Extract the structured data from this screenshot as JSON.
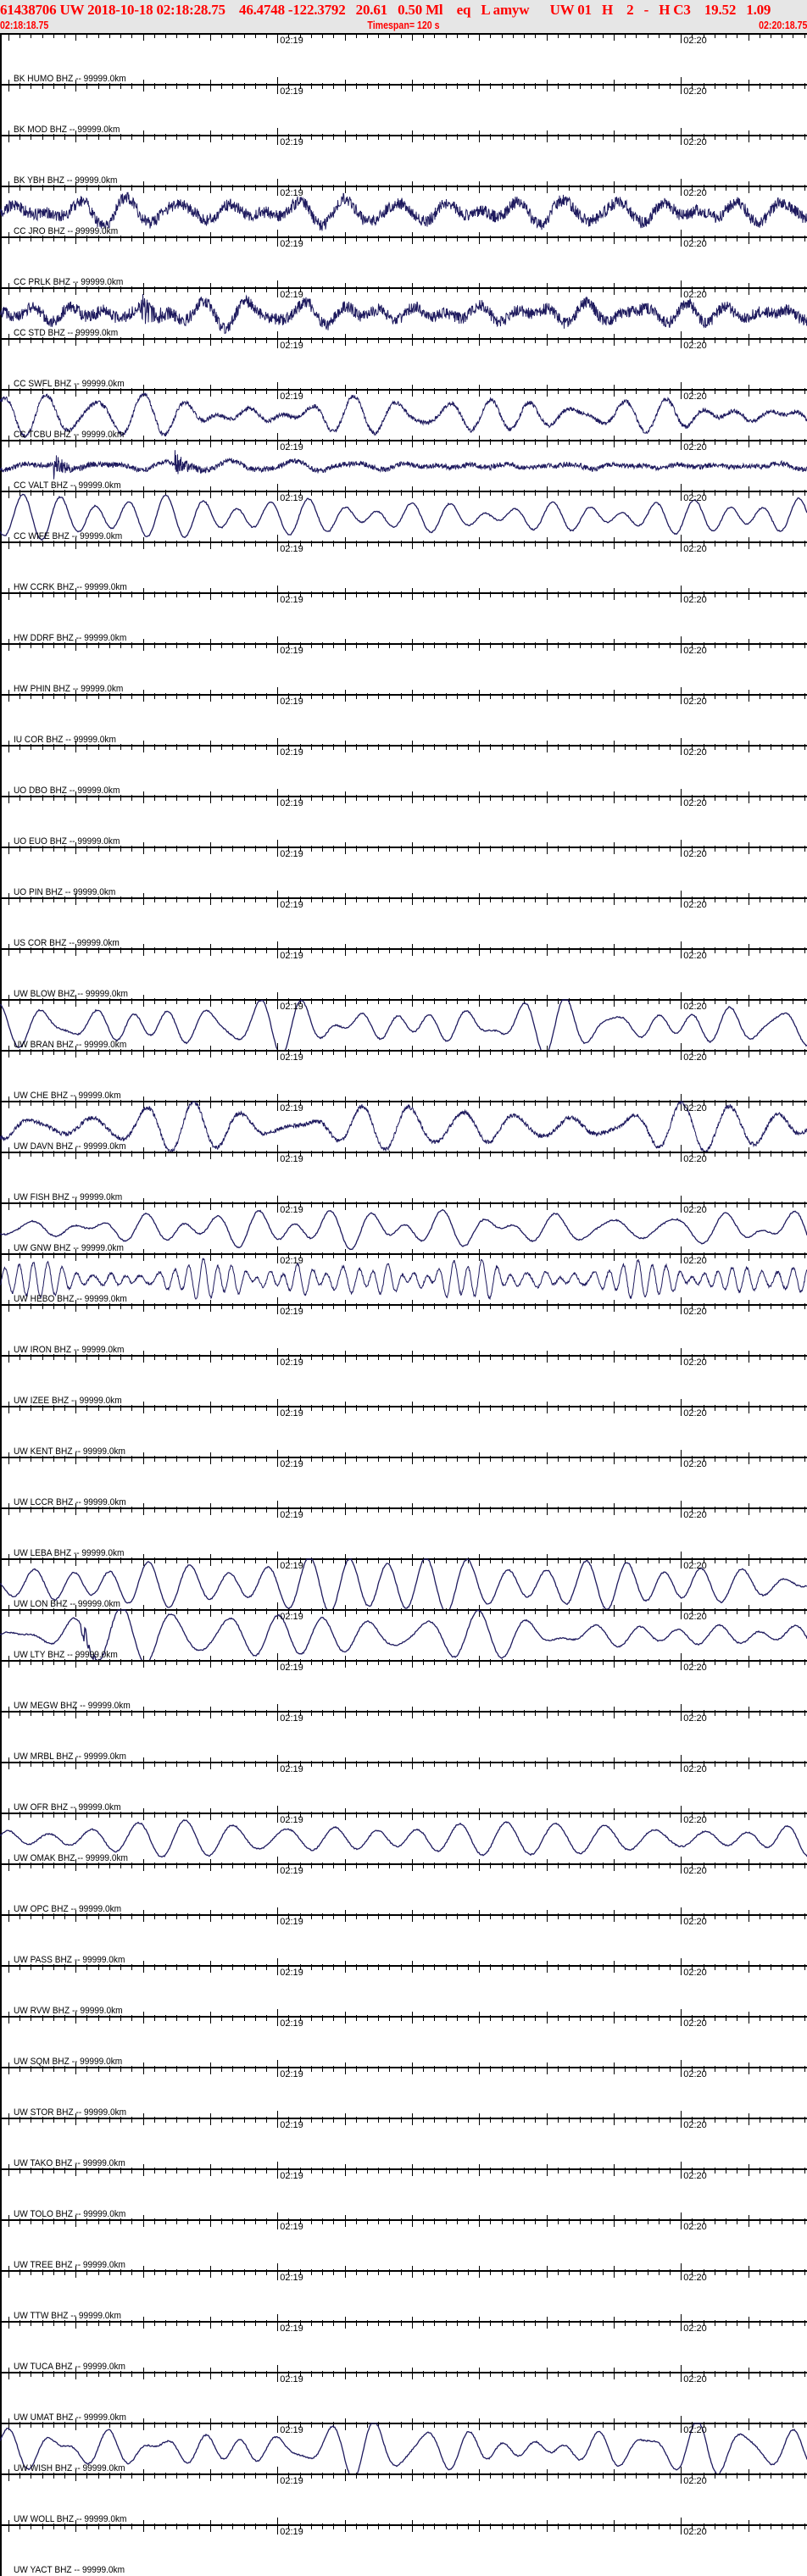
{
  "header": {
    "title": "61438706 UW 2018-10-18 02:18:28.75    46.4748 -122.3792   20.61   0.50 Ml    eq   L amyw      UW 01   H    2   -   H C3    19.52   1.09",
    "start_time": "02:18:18.75",
    "timespan": "Timespan= 120 s",
    "end_time": "02:20:18.75"
  },
  "colors": {
    "header_text": "#ff0000",
    "header_bg": "#e6e6e6",
    "trace": "#1e1a5e",
    "axis": "#000000"
  },
  "chart_data": {
    "type": "line",
    "x_unit": "seconds after 02:18:18.75",
    "xlim": [
      0,
      120
    ],
    "major_tick_labels": [
      {
        "t": 41.25,
        "label": "02:19"
      },
      {
        "t": 101.25,
        "label": "02:20"
      }
    ],
    "medium_tick_interval_s": 10,
    "stations": [
      {
        "label": "BK HUMO BHZ -- 99999.0km",
        "trace": "none"
      },
      {
        "label": "BK MOD BHZ -- 99999.0km",
        "trace": "none"
      },
      {
        "label": "BK YBH BHZ -- 99999.0km",
        "trace": "noisy"
      },
      {
        "label": "CC JRO BHZ -- 99999.0km",
        "trace": "none"
      },
      {
        "label": "CC PRLK BHZ -- 99999.0km",
        "trace": "noisy",
        "events_s": [
          21
        ]
      },
      {
        "label": "CC STD BHZ -- 99999.0km",
        "trace": "none"
      },
      {
        "label": "CC SWFL BHZ -- 99999.0km",
        "trace": "smooth-noisy"
      },
      {
        "label": "CC TCBU BHZ -- 99999.0km",
        "trace": "small-noisy",
        "events_s": [
          8,
          26
        ]
      },
      {
        "label": "CC VALT BHZ -- 99999.0km",
        "trace": "smooth"
      },
      {
        "label": "CC WIFE BHZ -- 99999.0km",
        "trace": "none"
      },
      {
        "label": "HW CCRK BHZ -- 99999.0km",
        "trace": "none"
      },
      {
        "label": "HW DDRF BHZ -- 99999.0km",
        "trace": "none"
      },
      {
        "label": "HW PHIN BHZ -- 99999.0km",
        "trace": "none"
      },
      {
        "label": "IU COR BHZ -- 99999.0km",
        "trace": "none"
      },
      {
        "label": "UO DBO BHZ -- 99999.0km",
        "trace": "none"
      },
      {
        "label": "UO EUO BHZ -- 99999.0km",
        "trace": "none"
      },
      {
        "label": "UO PIN BHZ -- 99999.0km",
        "trace": "none"
      },
      {
        "label": "US COR BHZ -- 99999.0km",
        "trace": "none"
      },
      {
        "label": "UW BLOW BHZ -- 99999.0km",
        "trace": "smooth"
      },
      {
        "label": "UW BRAN BHZ -- 99999.0km",
        "trace": "none"
      },
      {
        "label": "UW CHE BHZ -- 99999.0km",
        "trace": "smooth-noisy"
      },
      {
        "label": "UW DAVN BHZ -- 99999.0km",
        "trace": "none"
      },
      {
        "label": "UW FISH BHZ -- 99999.0km",
        "trace": "smooth"
      },
      {
        "label": "UW GNW BHZ -- 99999.0km",
        "trace": "spiky"
      },
      {
        "label": "UW HEBO BHZ -- 99999.0km",
        "trace": "none"
      },
      {
        "label": "UW IRON BHZ -- 99999.0km",
        "trace": "none"
      },
      {
        "label": "UW IZEE BHZ -- 99999.0km",
        "trace": "none"
      },
      {
        "label": "UW KENT BHZ -- 99999.0km",
        "trace": "none"
      },
      {
        "label": "UW LCCR BHZ -- 99999.0km",
        "trace": "none"
      },
      {
        "label": "UW LEBA BHZ -- 99999.0km",
        "trace": "smooth"
      },
      {
        "label": "UW LON BHZ -- 99999.0km",
        "trace": "smooth",
        "events_s": [
          12
        ]
      },
      {
        "label": "UW LTY BHZ -- 99999.0km",
        "trace": "none"
      },
      {
        "label": "UW MEGW BHZ -- 99999.0km",
        "trace": "none"
      },
      {
        "label": "UW MRBL BHZ -- 99999.0km",
        "trace": "none"
      },
      {
        "label": "UW OFR BHZ -- 99999.0km",
        "trace": "smooth"
      },
      {
        "label": "UW OMAK BHZ -- 99999.0km",
        "trace": "none"
      },
      {
        "label": "UW OPC BHZ -- 99999.0km",
        "trace": "none"
      },
      {
        "label": "UW PASS BHZ -- 99999.0km",
        "trace": "none"
      },
      {
        "label": "UW RVW BHZ -- 99999.0km",
        "trace": "none"
      },
      {
        "label": "UW SQM BHZ -- 99999.0km",
        "trace": "none"
      },
      {
        "label": "UW STOR BHZ -- 99999.0km",
        "trace": "none"
      },
      {
        "label": "UW TAKO BHZ -- 99999.0km",
        "trace": "none"
      },
      {
        "label": "UW TOLO BHZ -- 99999.0km",
        "trace": "none"
      },
      {
        "label": "UW TREE BHZ -- 99999.0km",
        "trace": "none"
      },
      {
        "label": "UW TTW BHZ -- 99999.0km",
        "trace": "none"
      },
      {
        "label": "UW TUCA BHZ -- 99999.0km",
        "trace": "none"
      },
      {
        "label": "UW UMAT BHZ -- 99999.0km",
        "trace": "smooth"
      },
      {
        "label": "UW WISH BHZ -- 99999.0km",
        "trace": "none"
      },
      {
        "label": "UW WOLL BHZ -- 99999.0km",
        "trace": "none"
      },
      {
        "label": "UW YACT BHZ -- 99999.0km",
        "trace": "none"
      }
    ]
  }
}
